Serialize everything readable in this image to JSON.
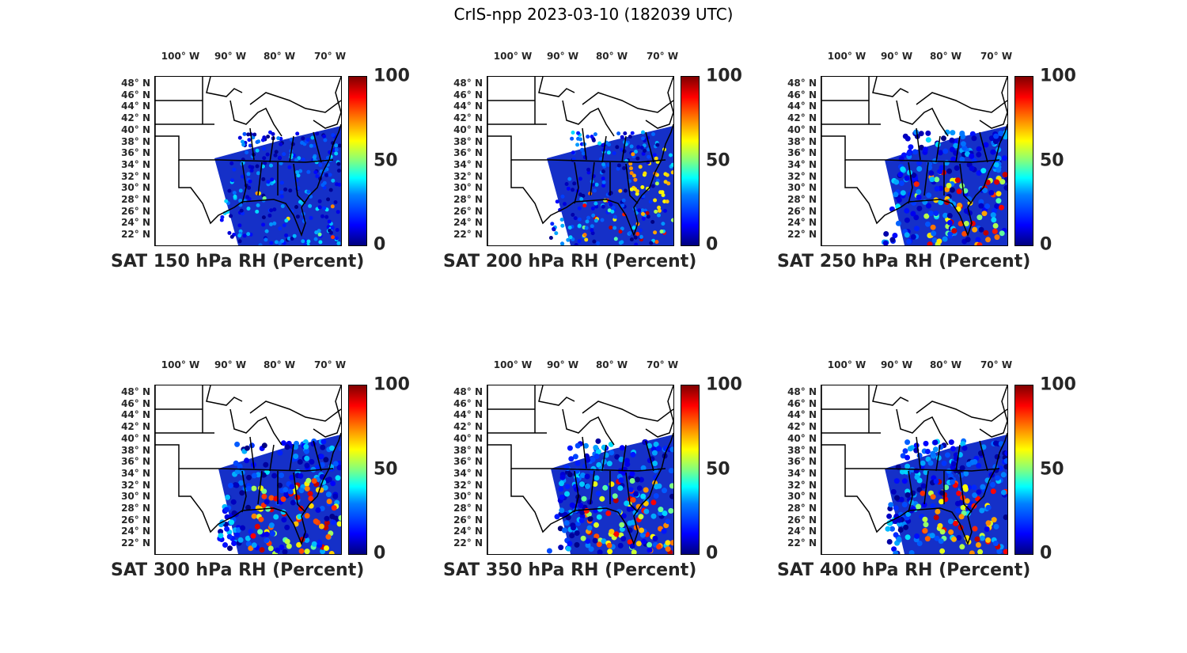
{
  "title": "CrIS-npp 2023-03-10 (182039 UTC)",
  "lon_labels": [
    "100° W",
    "90° W",
    "80° W",
    "70° W"
  ],
  "lat_labels": [
    "48° N",
    "46° N",
    "44° N",
    "42° N",
    "40° N",
    "38° N",
    "36° N",
    "34° N",
    "32° N",
    "30° N",
    "28° N",
    "26° N",
    "24° N",
    "22° N"
  ],
  "colorbar": {
    "ticks": [
      "100",
      "50",
      "0"
    ],
    "range": [
      0,
      100
    ],
    "colormap": "jet"
  },
  "panels": [
    {
      "title": "SAT 150 hPa RH (Percent)",
      "level_hpa": 150,
      "dominant": "blue",
      "moist_fraction": 0.05
    },
    {
      "title": "SAT 200 hPa RH (Percent)",
      "level_hpa": 200,
      "dominant": "blue-yellow",
      "moist_fraction": 0.35
    },
    {
      "title": "SAT 250 hPa RH (Percent)",
      "level_hpa": 250,
      "dominant": "mixed",
      "moist_fraction": 0.55
    },
    {
      "title": "SAT 300 hPa RH (Percent)",
      "level_hpa": 300,
      "dominant": "mixed",
      "moist_fraction": 0.55
    },
    {
      "title": "SAT 350 hPa RH (Percent)",
      "level_hpa": 350,
      "dominant": "mixed",
      "moist_fraction": 0.5
    },
    {
      "title": "SAT 400 hPa RH (Percent)",
      "level_hpa": 400,
      "dominant": "mixed",
      "moist_fraction": 0.5
    }
  ],
  "colors": {
    "border": "#000000",
    "swath_dry": "#1530c8",
    "swath_wet": "#f0a020"
  }
}
